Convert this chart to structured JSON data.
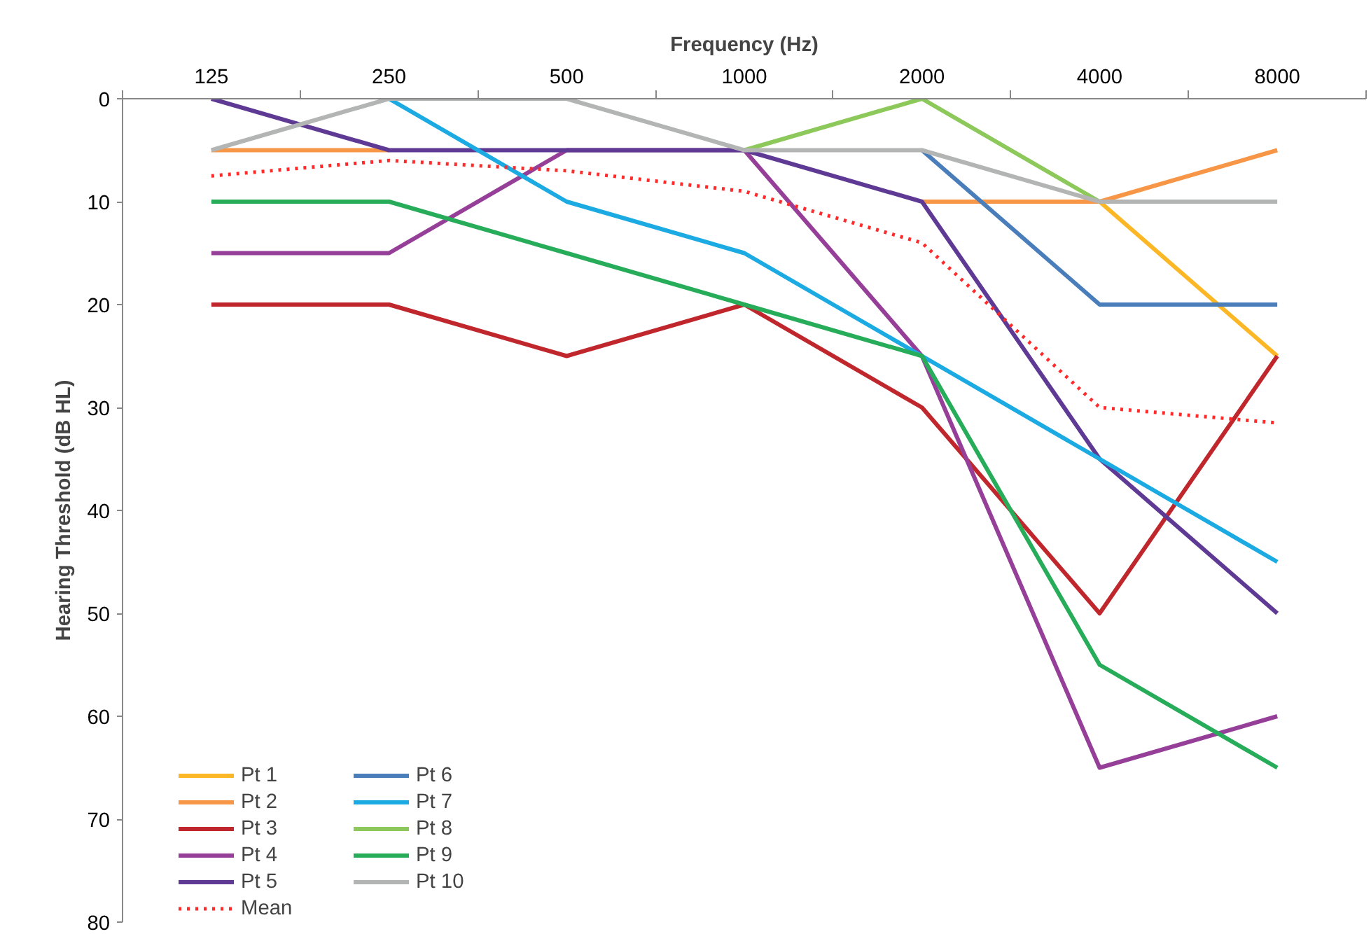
{
  "chart_data": {
    "type": "line",
    "xlabel": "Frequency (Hz)",
    "ylabel": "Hearing Threshold (dB HL)",
    "categories": [
      "125",
      "250",
      "500",
      "1000",
      "2000",
      "4000",
      "8000"
    ],
    "ylim": [
      80,
      0
    ],
    "yticks": [
      0,
      10,
      20,
      30,
      40,
      50,
      60,
      70,
      80
    ],
    "grid": false,
    "legend": "bottom left",
    "marker": "none",
    "series": [
      {
        "name": "Pt 1",
        "color": "#fbb725",
        "values": [
          null,
          null,
          null,
          null,
          null,
          10,
          25
        ]
      },
      {
        "name": "Pt 2",
        "color": "#f79646",
        "values": [
          5,
          5,
          null,
          null,
          10,
          10,
          5
        ]
      },
      {
        "name": "Pt 3",
        "color": "#c0272d",
        "values": [
          20,
          20,
          25,
          20,
          30,
          50,
          25
        ]
      },
      {
        "name": "Pt 4",
        "color": "#953f98",
        "values": [
          15,
          15,
          5,
          5,
          25,
          65,
          60
        ]
      },
      {
        "name": "Pt 5",
        "color": "#5f3a95",
        "values": [
          0,
          5,
          5,
          5,
          10,
          35,
          50
        ]
      },
      {
        "name": "Pt 6",
        "color": "#4a7ebb",
        "values": [
          null,
          null,
          null,
          null,
          5,
          20,
          20
        ]
      },
      {
        "name": "Pt 7",
        "color": "#1caae2",
        "values": [
          null,
          0,
          10,
          15,
          25,
          35,
          45
        ]
      },
      {
        "name": "Pt 8",
        "color": "#8cc85a",
        "values": [
          null,
          null,
          null,
          5,
          0,
          10,
          null
        ]
      },
      {
        "name": "Pt 9",
        "color": "#27ad5a",
        "values": [
          10,
          10,
          15,
          20,
          25,
          55,
          65
        ]
      },
      {
        "name": "Pt 10",
        "color": "#b3b5b4",
        "values": [
          5,
          0,
          0,
          5,
          5,
          10,
          10
        ]
      },
      {
        "name": "Mean",
        "color": "#ff2a2a",
        "line_style": "dotted",
        "values": [
          7.5,
          6,
          7,
          9,
          14,
          30,
          31.5
        ]
      }
    ]
  }
}
